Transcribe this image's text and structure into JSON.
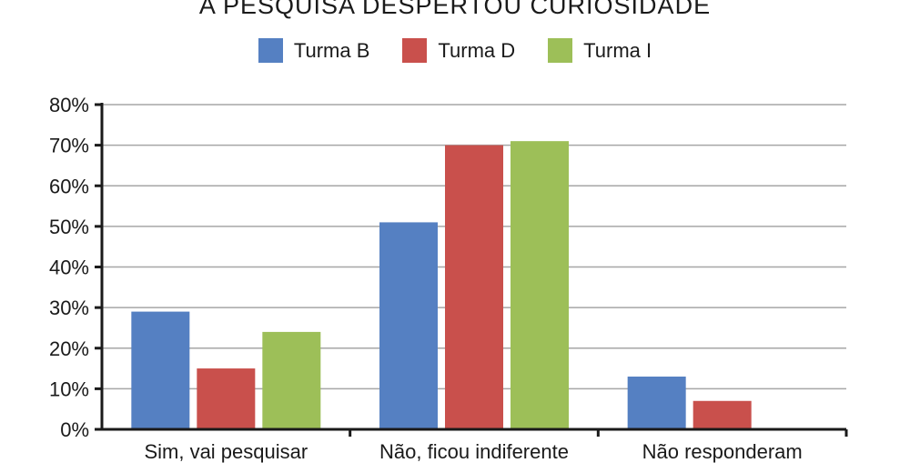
{
  "chart_data": {
    "type": "bar",
    "title": "A PESQUISA DESPERTOU CURIOSIDADE",
    "categories": [
      "Sim, vai pesquisar",
      "Não, ficou indiferente",
      "Não responderam"
    ],
    "series": [
      {
        "name": "Turma B",
        "color": "#5580c2",
        "values": [
          29,
          51,
          13
        ]
      },
      {
        "name": "Turma D",
        "color": "#c9504c",
        "values": [
          15,
          70,
          7
        ]
      },
      {
        "name": "Turma I",
        "color": "#9dbf58",
        "values": [
          24,
          71,
          0
        ]
      }
    ],
    "ylim": [
      0,
      80
    ],
    "yticks": [
      "0%",
      "10%",
      "20%",
      "30%",
      "40%",
      "50%",
      "60%",
      "70%",
      "80%"
    ],
    "grid": true,
    "legend_position": "top"
  }
}
